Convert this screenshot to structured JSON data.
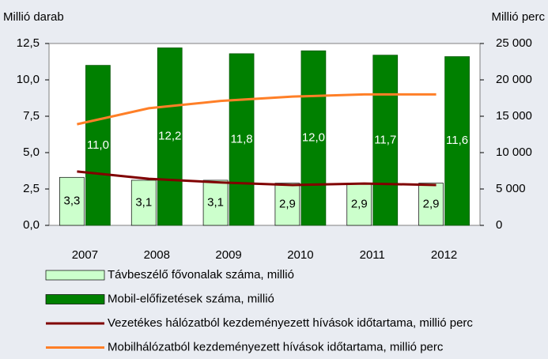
{
  "chart_data": {
    "type": "bar",
    "y_label": "Millió darab",
    "y2_label": "Millió perc",
    "categories": [
      "2007",
      "2008",
      "2009",
      "2010",
      "2011",
      "2012"
    ],
    "ylim": [
      0,
      12.5
    ],
    "yticks": [
      {
        "value": 0,
        "label": "0,0"
      },
      {
        "value": 2.5,
        "label": "2,5"
      },
      {
        "value": 5,
        "label": "5,0"
      },
      {
        "value": 7.5,
        "label": "7,5"
      },
      {
        "value": 10,
        "label": "10,0"
      },
      {
        "value": 12.5,
        "label": "12,5"
      }
    ],
    "y2lim": [
      0,
      25000
    ],
    "y2ticks": [
      0,
      {
        "value": 5000,
        "label": "5 000"
      },
      {
        "value": 10000,
        "label": "10 000"
      },
      {
        "value": 15000,
        "label": "15 000"
      },
      {
        "value": 20000,
        "label": "20 000"
      },
      {
        "value": 25000,
        "label": "25 000"
      }
    ],
    "series": [
      {
        "name": "Távbeszélő fővonalak száma, millió",
        "type": "bar",
        "color": "#ccffcc",
        "values": [
          3.3,
          3.1,
          3.1,
          2.9,
          2.9,
          2.9
        ],
        "value_labels": [
          "3,3",
          "3,1",
          "3,1",
          "2,9",
          "2,9",
          "2,9"
        ]
      },
      {
        "name": "Mobil-előfizetések száma, millió",
        "type": "bar",
        "color": "#008000",
        "values": [
          11.0,
          12.2,
          11.8,
          12.0,
          11.7,
          11.6
        ],
        "value_labels": [
          "11,0",
          "12,2",
          "11,8",
          "12,0",
          "11,7",
          "11,6"
        ]
      },
      {
        "name": "Vezetékes hálózatból kezdeményezett hívások időtartama, millió perc",
        "type": "line",
        "axis": "y2",
        "color": "#800000",
        "values": [
          7400,
          6400,
          5900,
          5550,
          5750,
          5550
        ]
      },
      {
        "name": "Mobilhálózatból kezdeményezett hívások időtartama, millió perc",
        "type": "line",
        "axis": "y2",
        "color": "#ff7f27",
        "values": [
          13900,
          16100,
          17100,
          17700,
          18000,
          18000
        ]
      }
    ]
  }
}
